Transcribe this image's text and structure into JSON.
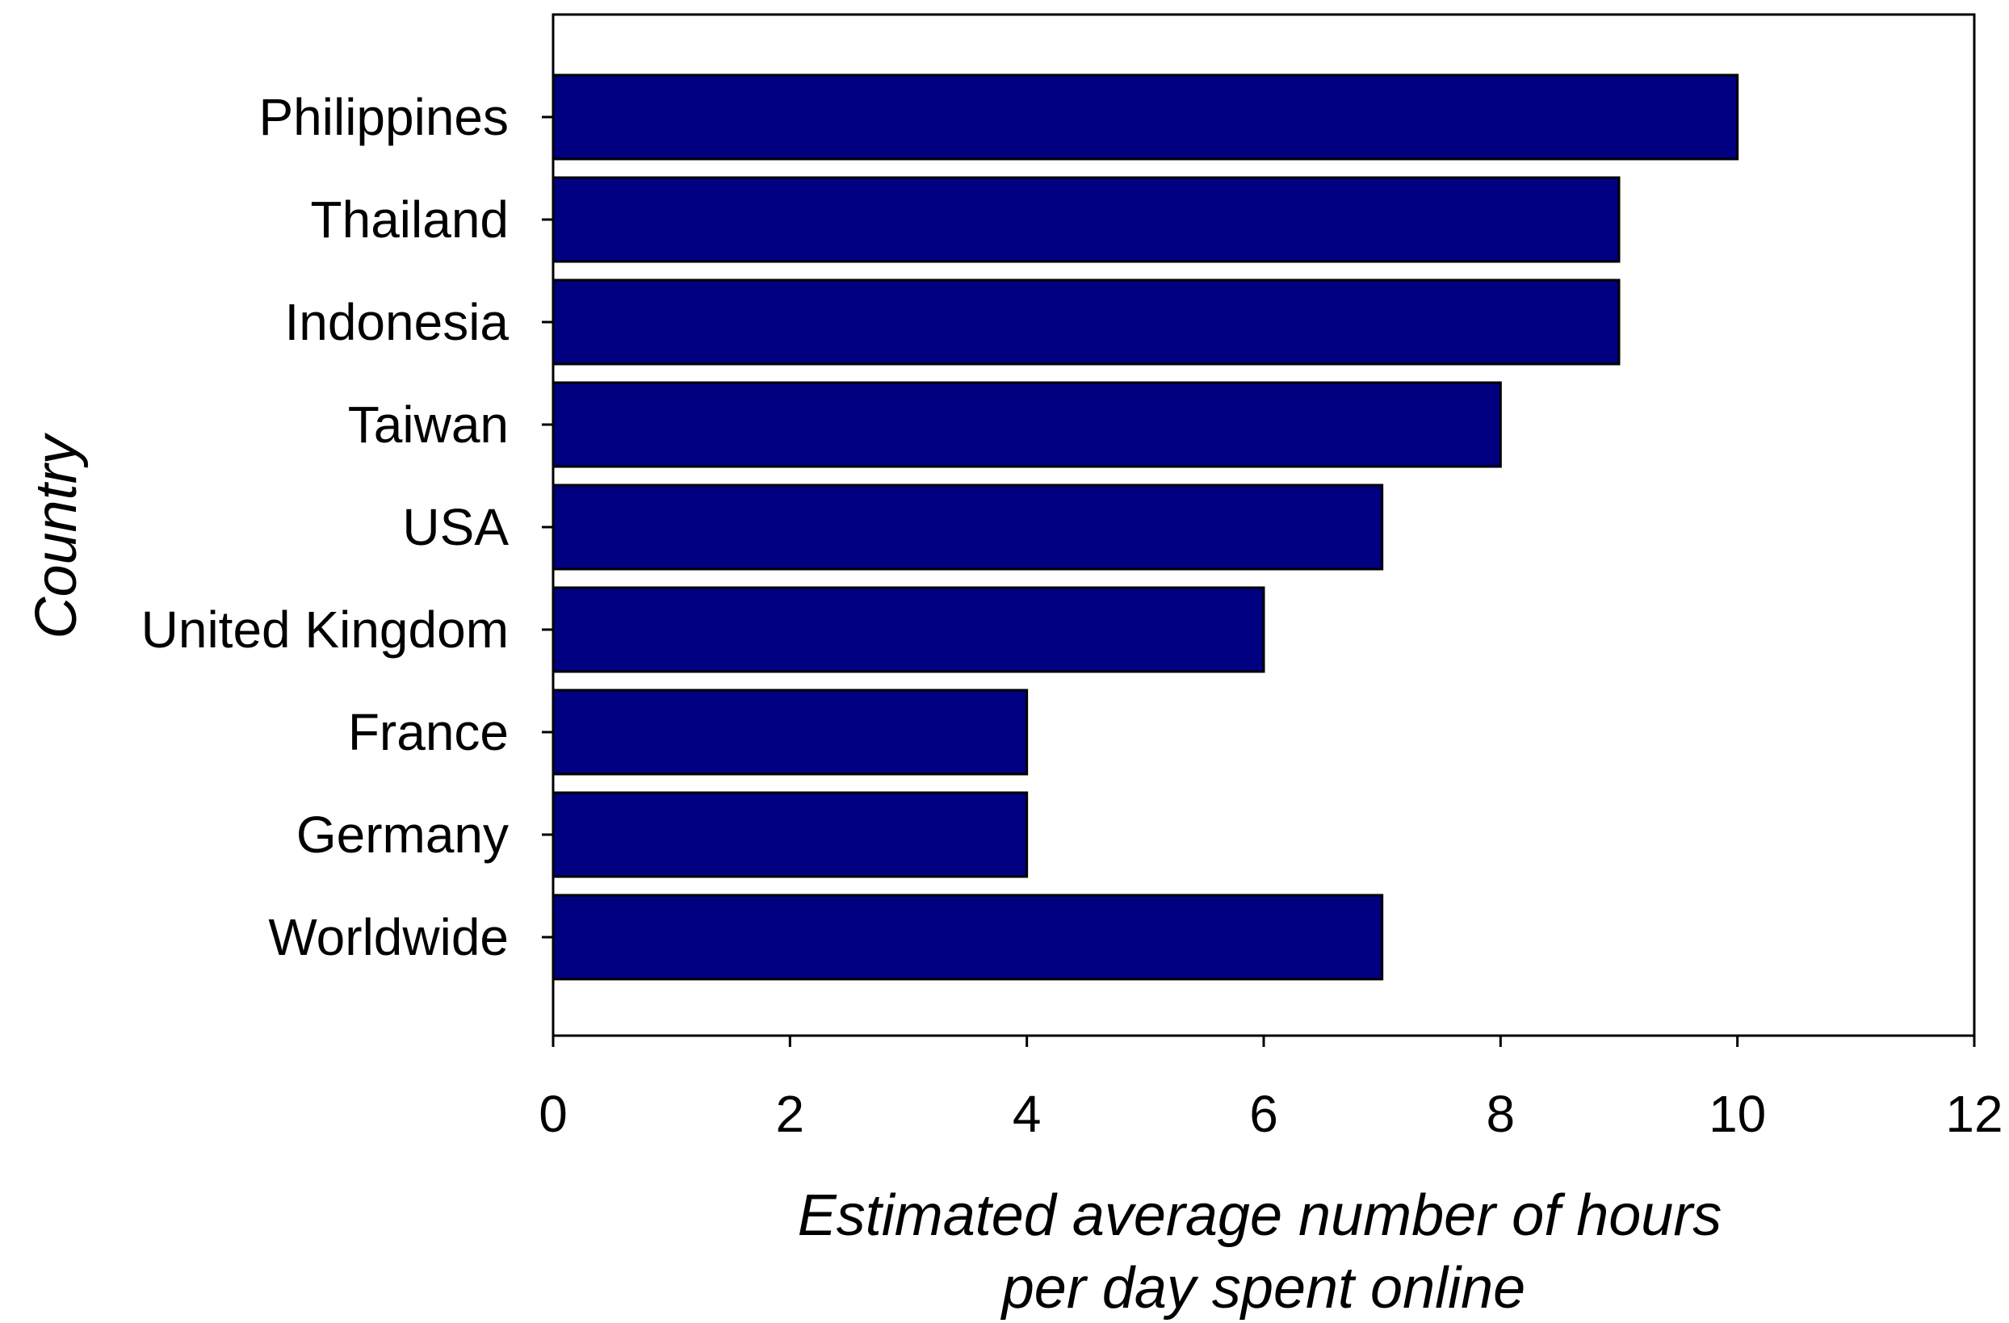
{
  "chart_data": {
    "type": "bar",
    "orientation": "horizontal",
    "title": "",
    "xlabel_lines": [
      "Estimated average number of hours",
      "per day spent online"
    ],
    "ylabel": "Country",
    "categories": [
      "Philippines",
      "Thailand",
      "Indonesia",
      "Taiwan",
      "USA",
      "United Kingdom",
      "France",
      "Germany",
      "Worldwide"
    ],
    "values": [
      10,
      9,
      9,
      8,
      7,
      6,
      4,
      4,
      7
    ],
    "xlim": [
      0,
      12
    ],
    "xticks": [
      0,
      2,
      4,
      6,
      8,
      10,
      12
    ],
    "grid": false,
    "legend": "none",
    "bar_color": "#000080",
    "bar_edge_color": "#000000"
  }
}
